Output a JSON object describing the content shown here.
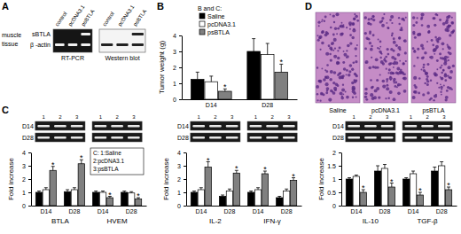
{
  "chart_data": [
    {
      "type": "bar",
      "ylabel": "Tumor weight (g)",
      "categories": [
        "D14",
        "D28"
      ],
      "series": [
        {
          "name": "Saline",
          "color": "#000000",
          "values": [
            1.25,
            3.0
          ],
          "errors": [
            0.45,
            0.8
          ]
        },
        {
          "name": "pcDNA3.1",
          "color": "#ffffff",
          "values": [
            1.1,
            2.8
          ],
          "errors": [
            0.35,
            0.7
          ]
        },
        {
          "name": "psBTLA",
          "color": "#808080",
          "values": [
            0.5,
            1.7
          ],
          "errors": [
            0.15,
            0.5
          ]
        }
      ],
      "ylim": [
        0,
        4
      ],
      "yticks": [
        0,
        1,
        2,
        3,
        4
      ],
      "legend": "top-left",
      "legend_title": "B and C:",
      "annotations": [
        {
          "text": "*",
          "series": 2,
          "category": 0
        },
        {
          "text": "*",
          "series": 2,
          "category": 1
        }
      ]
    },
    {
      "type": "bar",
      "ylabel": "Fold increase",
      "categories": [
        "D14",
        "D28",
        "D14",
        "D28"
      ],
      "group_labels": [
        "BTLA",
        "HVEM"
      ],
      "series": [
        {
          "name": "Saline",
          "color": "#000000",
          "values": [
            1.0,
            1.05,
            1.0,
            1.0
          ],
          "errors": [
            0.1,
            0.15,
            0.1,
            0.1
          ]
        },
        {
          "name": "pcDNA3.1",
          "color": "#ffffff",
          "values": [
            1.2,
            1.2,
            1.0,
            0.95
          ],
          "errors": [
            0.15,
            0.15,
            0.1,
            0.1
          ]
        },
        {
          "name": "psBTLA",
          "color": "#808080",
          "values": [
            2.65,
            3.15,
            0.6,
            0.5
          ],
          "errors": [
            0.3,
            0.3,
            0.1,
            0.1
          ]
        }
      ],
      "ylim": [
        0,
        4
      ],
      "yticks": [
        0,
        1,
        2,
        3,
        4
      ],
      "annotations": [
        {
          "text": "*",
          "series": 2,
          "category": 0
        },
        {
          "text": "*",
          "series": 2,
          "category": 1
        },
        {
          "text": "*",
          "series": 2,
          "category": 2
        },
        {
          "text": "*",
          "series": 2,
          "category": 3
        }
      ]
    },
    {
      "type": "bar",
      "ylabel": "Fold increase",
      "categories": [
        "D14",
        "D28",
        "D14",
        "D28"
      ],
      "group_labels": [
        "IL-2",
        "IFN-γ"
      ],
      "series": [
        {
          "name": "Saline",
          "color": "#000000",
          "values": [
            1.0,
            0.7,
            1.0,
            0.6
          ],
          "errors": [
            0.1,
            0.1,
            0.1,
            0.1
          ]
        },
        {
          "name": "pcDNA3.1",
          "color": "#ffffff",
          "values": [
            1.2,
            1.1,
            1.2,
            1.1
          ],
          "errors": [
            0.15,
            0.15,
            0.15,
            0.15
          ]
        },
        {
          "name": "psBTLA",
          "color": "#808080",
          "values": [
            2.9,
            2.45,
            2.4,
            1.9
          ],
          "errors": [
            0.4,
            0.2,
            0.2,
            0.2
          ]
        }
      ],
      "ylim": [
        0,
        4
      ],
      "yticks": [
        0,
        1,
        2,
        3,
        4
      ],
      "annotations": [
        {
          "text": "*",
          "series": 2,
          "category": 0
        },
        {
          "text": "*",
          "series": 2,
          "category": 1
        },
        {
          "text": "*",
          "series": 2,
          "category": 2
        },
        {
          "text": "*",
          "series": 2,
          "category": 3
        }
      ]
    },
    {
      "type": "bar",
      "ylabel": "Fold increase",
      "categories": [
        "D14",
        "D28",
        "D14",
        "D28"
      ],
      "group_labels": [
        "IL-10",
        "TGF-β"
      ],
      "series": [
        {
          "name": "Saline",
          "color": "#000000",
          "values": [
            1.0,
            1.3,
            1.0,
            1.3
          ],
          "errors": [
            0.05,
            0.2,
            0.05,
            0.15
          ]
        },
        {
          "name": "pcDNA3.1",
          "color": "#ffffff",
          "values": [
            1.1,
            1.4,
            1.2,
            1.5
          ],
          "errors": [
            0.05,
            0.15,
            0.1,
            0.15
          ]
        },
        {
          "name": "psBTLA",
          "color": "#808080",
          "values": [
            0.5,
            0.7,
            0.4,
            0.6
          ],
          "errors": [
            0.1,
            0.15,
            0.1,
            0.1
          ]
        }
      ],
      "ylim": [
        0,
        2
      ],
      "yticks": [
        0,
        0.5,
        1,
        1.5,
        2
      ],
      "annotations": [
        {
          "text": "*",
          "series": 2,
          "category": 0
        },
        {
          "text": "*",
          "series": 2,
          "category": 1
        },
        {
          "text": "*",
          "series": 2,
          "category": 2
        },
        {
          "text": "*",
          "series": 2,
          "category": 3
        }
      ]
    }
  ],
  "panels": {
    "A": {
      "label": "A",
      "lanes": [
        "control",
        "pcDNA3.1",
        "psBTLA"
      ],
      "side_label": [
        "muscle",
        "tissue"
      ],
      "rows": [
        "sBTLA",
        "β -actin"
      ],
      "methods": [
        "RT-PCR",
        "Western blot"
      ]
    },
    "B": {
      "label": "B"
    },
    "C": {
      "label": "C",
      "legend_box": [
        "C: 1:Saline",
        "2:pcDNA3.1",
        "3:psBTLA"
      ],
      "gel_lanes": [
        "1",
        "2",
        "3"
      ],
      "gel_rows": [
        "D14",
        "D28"
      ]
    },
    "D": {
      "label": "D",
      "images": [
        "Saline",
        "pcDNA3.1",
        "psBTLA"
      ]
    }
  }
}
